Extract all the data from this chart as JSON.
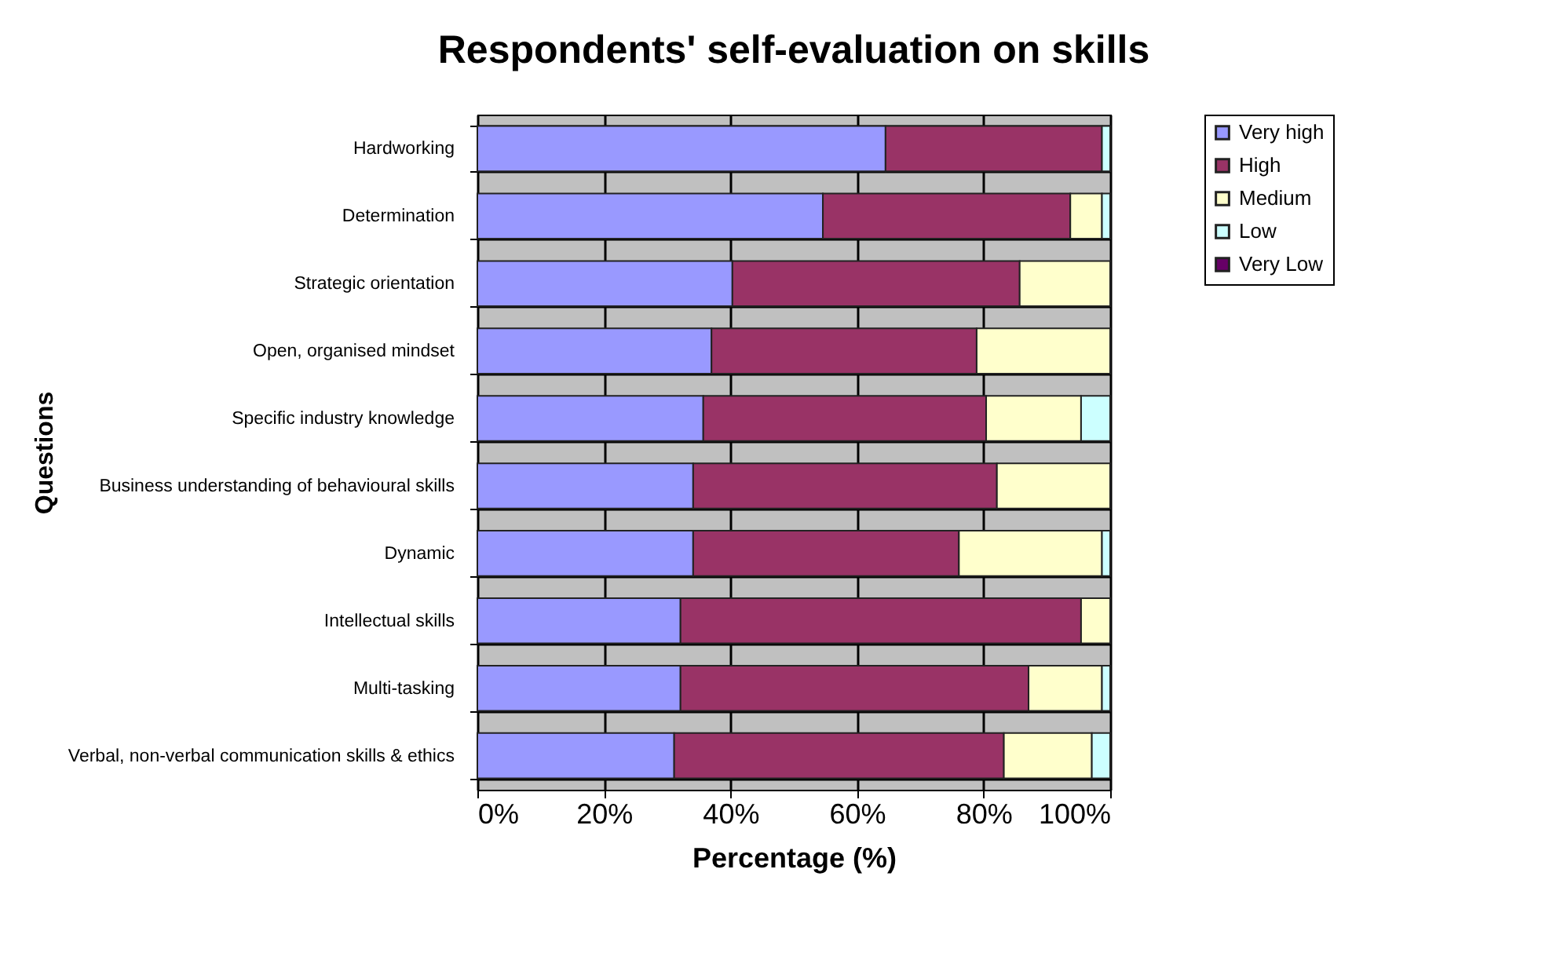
{
  "chart_data": {
    "type": "bar",
    "orientation": "horizontal",
    "stacked": true,
    "title": "Respondents' self-evaluation on skills",
    "xlabel": "Percentage (%)",
    "ylabel": "Questions",
    "categories": [
      "Hardworking",
      "Determination",
      "Strategic orientation",
      "Open, organised mindset",
      "Specific industry knowledge",
      "Business understanding of behavioural skills",
      "Dynamic",
      "Intellectual skills",
      "Multi-tasking",
      "Verbal, non-verbal communication skills & ethics"
    ],
    "series": [
      {
        "name": "Very high",
        "color": "#9999ff",
        "values": [
          64.5,
          54.6,
          40.3,
          37.0,
          35.7,
          34.1,
          34.1,
          32.1,
          32.1,
          31.1
        ]
      },
      {
        "name": "High",
        "color": "#993366",
        "values": [
          34.2,
          39.1,
          45.4,
          41.9,
          44.7,
          48.0,
          42.0,
          63.3,
          55.0,
          52.1
        ]
      },
      {
        "name": "Medium",
        "color": "#ffffcc",
        "values": [
          null,
          5.0,
          14.3,
          21.1,
          15.0,
          17.9,
          22.6,
          4.6,
          11.6,
          13.9
        ]
      },
      {
        "name": "Low",
        "color": "#ccffff",
        "values": [
          1.3,
          1.3,
          null,
          null,
          4.6,
          null,
          1.3,
          null,
          1.3,
          2.9
        ]
      },
      {
        "name": "Very Low",
        "color": "#660066",
        "values": [
          null,
          null,
          null,
          null,
          null,
          null,
          null,
          null,
          null,
          null
        ]
      }
    ],
    "xlim": [
      0,
      100
    ],
    "xticks": [
      {
        "value": 0,
        "label": "0%"
      },
      {
        "value": 20,
        "label": "20%"
      },
      {
        "value": 40,
        "label": "40%"
      },
      {
        "value": 60,
        "label": "60%"
      },
      {
        "value": 80,
        "label": "80%"
      },
      {
        "value": 100,
        "label": "100%"
      }
    ],
    "grid": true,
    "legend": "right"
  }
}
